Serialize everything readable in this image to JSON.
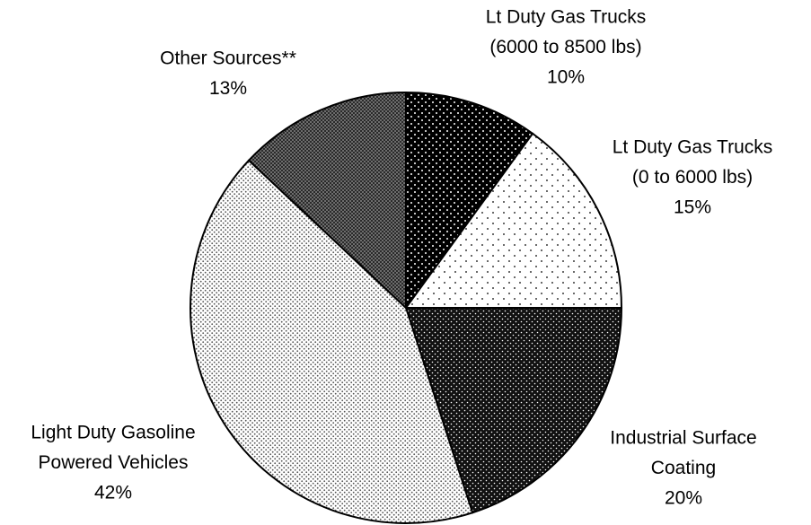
{
  "chart_data": {
    "type": "pie",
    "labels": [
      [
        "Lt Duty Gas Trucks",
        "(6000 to 8500 lbs)"
      ],
      [
        "Lt Duty Gas Trucks",
        "(0 to 6000 lbs)"
      ],
      [
        "Industrial Surface",
        "Coating"
      ],
      [
        "Light Duty Gasoline",
        "Powered Vehicles"
      ],
      [
        "Other Sources**"
      ]
    ],
    "values": [
      10,
      15,
      20,
      42,
      13
    ],
    "value_labels": [
      "10%",
      "15%",
      "20%",
      "42%",
      "13%"
    ]
  }
}
